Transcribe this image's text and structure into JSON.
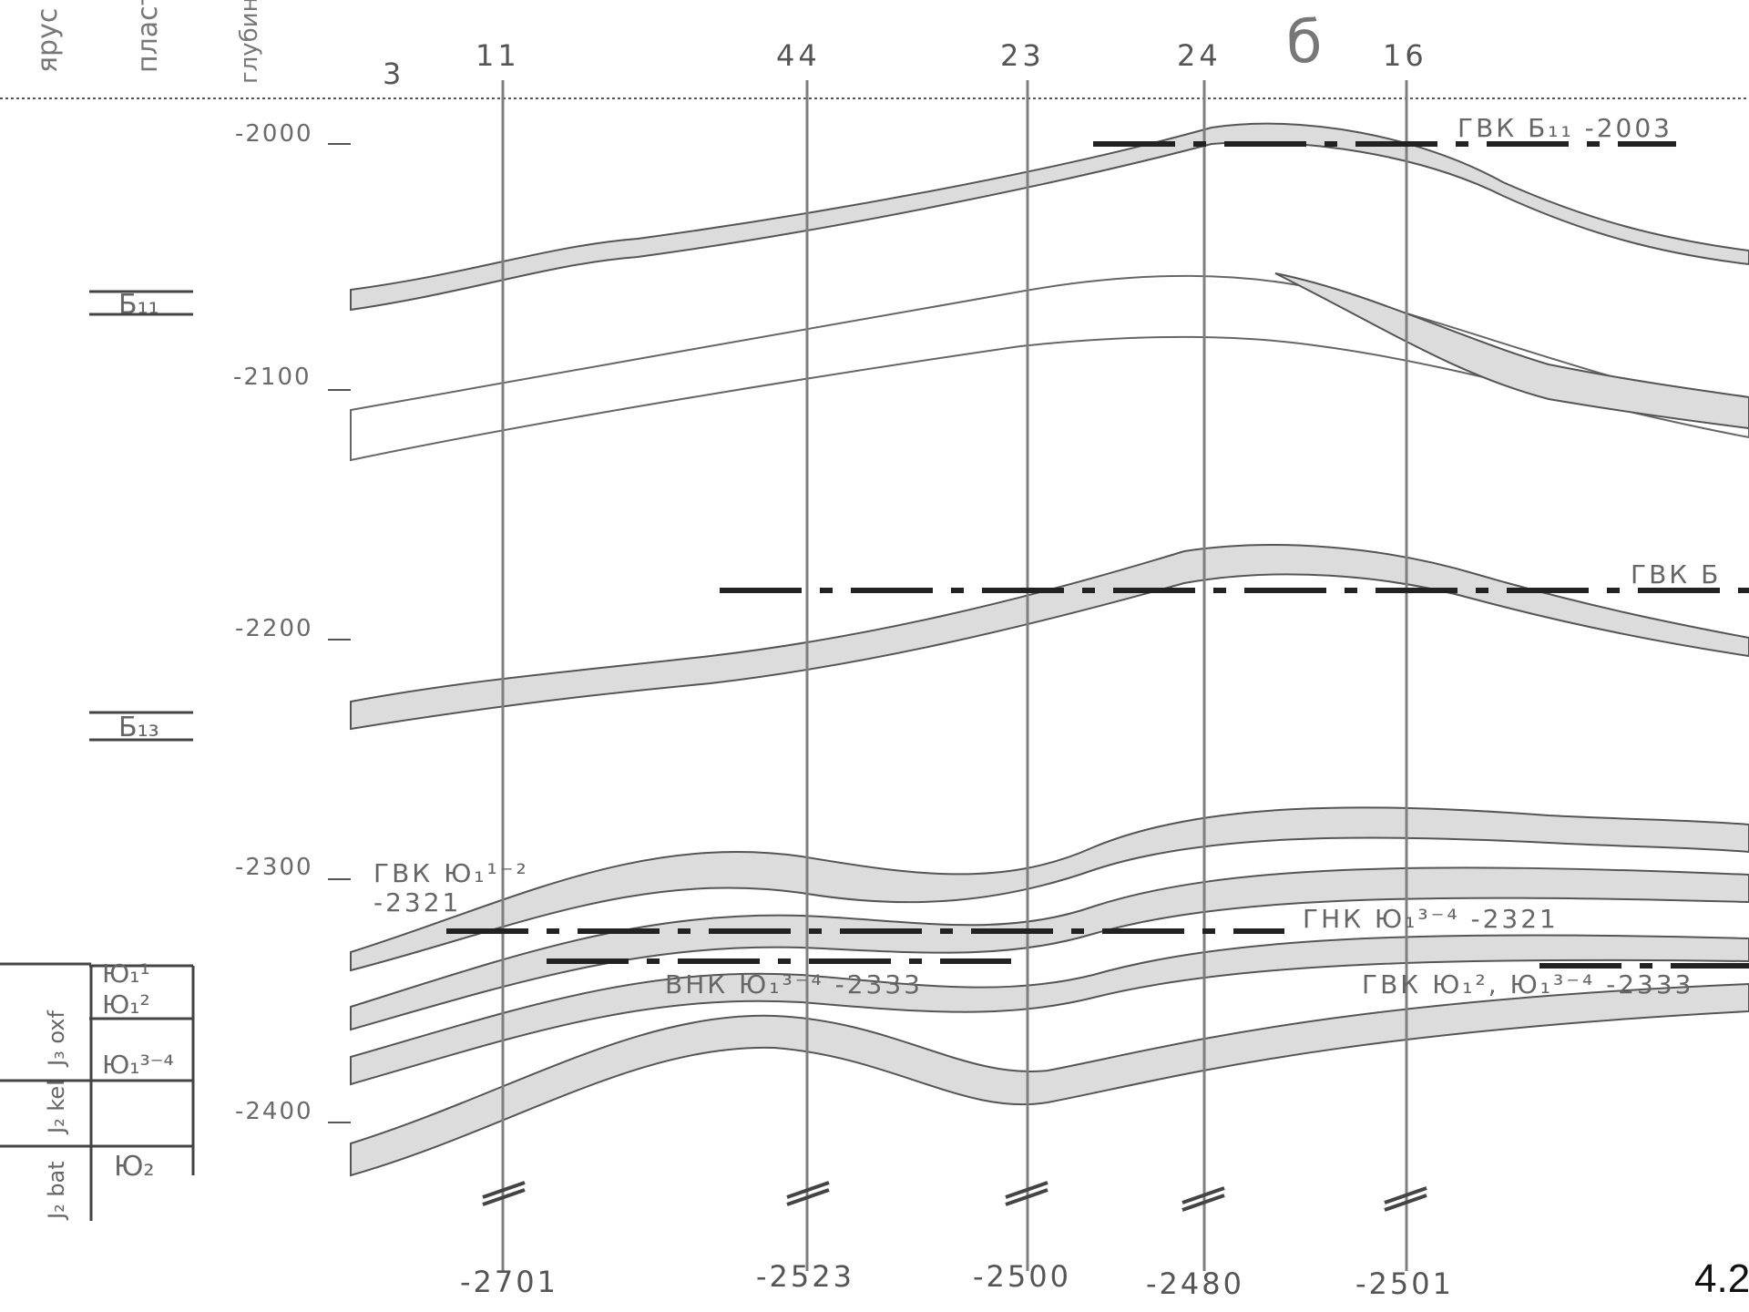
{
  "header": {
    "col_age": "ярус",
    "col_layer": "пласт",
    "col_depth": "глубина а.о.",
    "letter": "б",
    "well_prefix": "3"
  },
  "depth_marks": [
    "-2000",
    "-2100",
    "-2200",
    "-2300",
    "-2400"
  ],
  "wells": [
    {
      "id": "11",
      "bottom": "-2701"
    },
    {
      "id": "44",
      "bottom": "-2523"
    },
    {
      "id": "23",
      "bottom": "-2500"
    },
    {
      "id": "24",
      "bottom": "-2480"
    },
    {
      "id": "16",
      "bottom": "-2501"
    }
  ],
  "strat": {
    "b11": "Б₁₁",
    "b13": "Б₁₃",
    "yu1_1": "Ю₁¹",
    "yu1_2": "Ю₁²",
    "yu1_34": "Ю₁³⁻⁴",
    "yu2": "Ю₂",
    "j3_oxf": "J₃ oxf",
    "j2_kel": "J₂ kel",
    "j2_bat": "J₂ bat"
  },
  "contacts": {
    "gvk_b11": "ГВК Б₁₁ -2003",
    "gvk_b13": "ГВК Б",
    "gvk_yu12": "ГВК Ю₁¹⁻²",
    "gvk_yu12_value": "-2321",
    "gnk_yu34": "ГНК Ю₁³⁻⁴ -2321",
    "vnk_yu34": "ВНК Ю₁³⁻⁴ -2333",
    "gvk_yu_combo": "ГВК Ю₁², Ю₁³⁻⁴ -2333"
  },
  "page_number": "4.2"
}
